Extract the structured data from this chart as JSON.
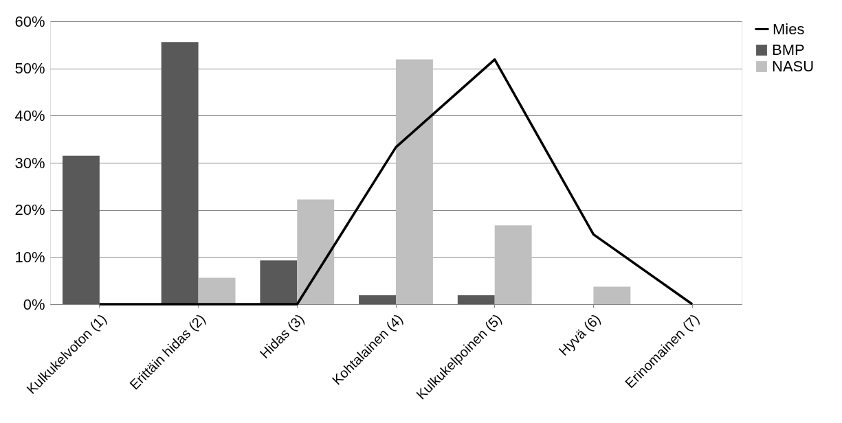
{
  "chart_data": {
    "type": "bar",
    "categories": [
      "Kulkukelvoton (1)",
      "Erittäin hidas (2)",
      "Hidas (3)",
      "Kohtalainen (4)",
      "Kulkukelpoinen (5)",
      "Hyvä (6)",
      "Erinomainen (7)"
    ],
    "series": [
      {
        "name": "BMP",
        "color": "#595959",
        "values": [
          31.5,
          55.6,
          9.3,
          1.9,
          1.9,
          0,
          0
        ]
      },
      {
        "name": "NASU",
        "color": "#bfbfbf",
        "values": [
          0,
          5.6,
          22.2,
          51.9,
          16.7,
          3.7,
          0
        ]
      },
      {
        "name": "Mies",
        "type": "line",
        "color": "#000000",
        "values": [
          0,
          0,
          0,
          33.3,
          51.9,
          14.8,
          0
        ]
      }
    ],
    "ylim": [
      0,
      60
    ],
    "yticks": [
      {
        "value": 0,
        "label": "0%"
      },
      {
        "value": 10,
        "label": "10%"
      },
      {
        "value": 20,
        "label": "20%"
      },
      {
        "value": 30,
        "label": "30%"
      },
      {
        "value": 40,
        "label": "40%"
      },
      {
        "value": 50,
        "label": "50%"
      },
      {
        "value": 60,
        "label": "60%"
      }
    ],
    "grid": "y",
    "legend": "right",
    "marker": "none",
    "line_style": "solid"
  }
}
